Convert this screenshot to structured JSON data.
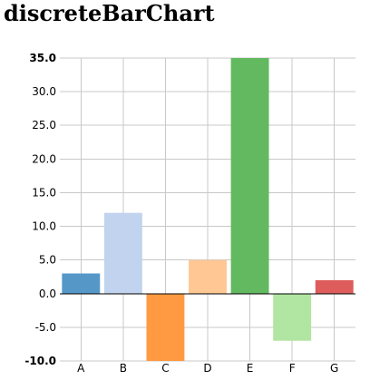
{
  "chart_data": {
    "type": "bar",
    "title": "discreteBarChart",
    "categories": [
      "A",
      "B",
      "C",
      "D",
      "E",
      "F",
      "G"
    ],
    "values": [
      3,
      12,
      -10,
      5,
      35,
      -7,
      2
    ],
    "colors": [
      "#5598c8",
      "#c1d3ee",
      "#ff9a43",
      "#fec793",
      "#62b95f",
      "#b1e5a2",
      "#de5c5c"
    ],
    "ylim": [
      -10,
      35
    ],
    "yticks": [
      "-10.0",
      "-5.0",
      "0.0",
      "5.0",
      "10.0",
      "15.0",
      "20.0",
      "25.0",
      "30.0",
      "35.0"
    ],
    "ytick_values": [
      -10,
      -5,
      0,
      5,
      10,
      15,
      20,
      25,
      30,
      35
    ],
    "grid": true,
    "xlabel": "",
    "ylabel": ""
  }
}
